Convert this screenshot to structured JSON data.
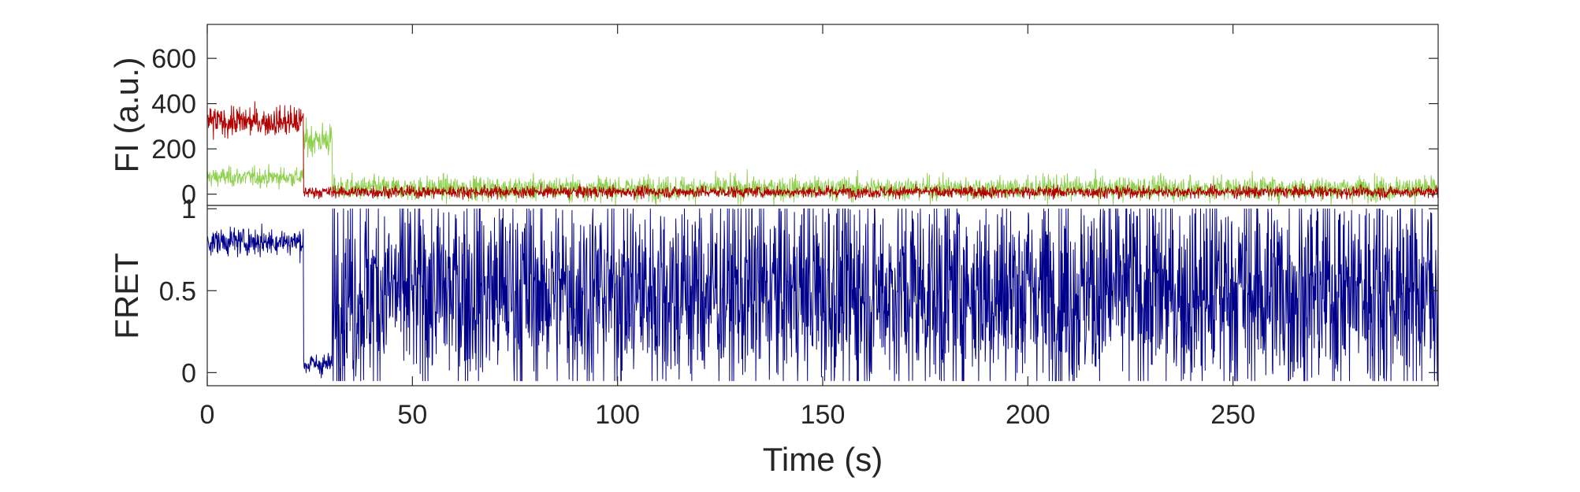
{
  "chart_data": [
    {
      "type": "line",
      "panel": "top",
      "title": "",
      "xlabel": "",
      "ylabel": "FI (a.u.)",
      "xlim": [
        0,
        300
      ],
      "ylim": [
        -50,
        750
      ],
      "yticks": [
        0,
        200,
        400,
        600
      ],
      "ytick_labels": [
        "0",
        "200",
        "400",
        "600"
      ],
      "grid": false,
      "legend": "none",
      "series": [
        {
          "color": "#8fd14f",
          "sample_interval_s": 0.1,
          "segments": [
            {
              "t_start": 0,
              "t_end": 23.5,
              "mean": 75,
              "noise": 35
            },
            {
              "t_start": 23.5,
              "t_end": 30.5,
              "mean": 240,
              "noise": 60
            },
            {
              "t_start": 30.5,
              "t_end": 300,
              "mean": 25,
              "noise": 45
            }
          ]
        },
        {
          "color": "#b30000",
          "sample_interval_s": 0.1,
          "segments": [
            {
              "t_start": 0,
              "t_end": 23.5,
              "mean": 320,
              "noise": 55
            },
            {
              "t_start": 23.5,
              "t_end": 300,
              "mean": 10,
              "noise": 22
            }
          ]
        }
      ]
    },
    {
      "type": "line",
      "panel": "bottom",
      "title": "",
      "xlabel": "Time (s)",
      "ylabel": "FRET",
      "xlim": [
        0,
        300
      ],
      "ylim": [
        -0.08,
        1.02
      ],
      "xticks": [
        0,
        50,
        100,
        150,
        200,
        250
      ],
      "xtick_labels": [
        "0",
        "50",
        "100",
        "150",
        "200",
        "250"
      ],
      "yticks": [
        0,
        0.5,
        1
      ],
      "ytick_labels": [
        "0",
        "0.5",
        "1"
      ],
      "grid": false,
      "legend": "none",
      "series": [
        {
          "color": "#00008b",
          "sample_interval_s": 0.1,
          "segments": [
            {
              "t_start": 0,
              "t_end": 23.5,
              "mean": 0.8,
              "noise": 0.07
            },
            {
              "t_start": 23.5,
              "t_end": 30.5,
              "mean": 0.05,
              "noise": 0.06
            },
            {
              "t_start": 30.5,
              "t_end": 300,
              "mean": 0.5,
              "noise": 0.55
            }
          ]
        }
      ]
    }
  ]
}
